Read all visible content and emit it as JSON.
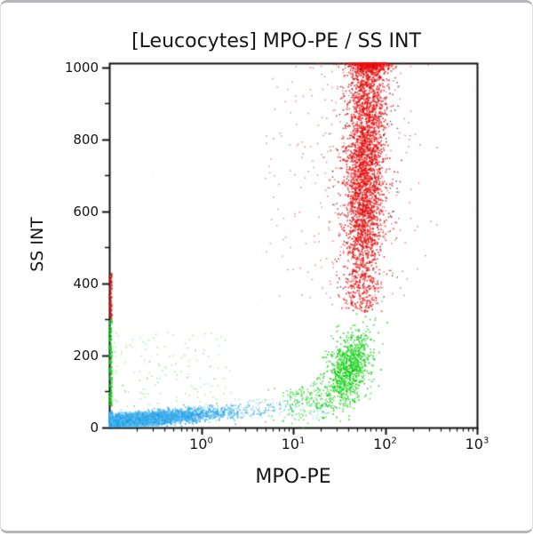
{
  "chart_data": {
    "type": "scatter",
    "title": "[Leucocytes] MPO-PE / SS INT",
    "xlabel": "MPO-PE",
    "ylabel": "SS INT",
    "x_scale": "log10",
    "x_decade_range": [
      -1,
      3
    ],
    "x_tick_exponents": [
      0,
      1,
      2,
      3
    ],
    "y_range": [
      0,
      1012
    ],
    "y_major_ticks": [
      0,
      200,
      400,
      600,
      800,
      1000
    ],
    "y_minor_ticks": [
      100,
      300,
      500,
      700,
      900
    ],
    "grid": false,
    "legend": null,
    "axis_color": "#101010",
    "populations": [
      {
        "name": "background-noise",
        "kind": "uniform",
        "color": "#a8b2ba",
        "alpha": 0.16,
        "size": 1.3,
        "count": 150,
        "x0": -1,
        "x1": 3,
        "y0": 5,
        "y1": 1000
      },
      {
        "name": "lymphocytes-band",
        "kind": "band",
        "colors": [
          "#29a3e8",
          "#1e97e0",
          "#45b4ee",
          "#6cc8f2"
        ],
        "alpha": 0.75,
        "size": 1.7,
        "count": 3600,
        "sx": 0.62,
        "edge_frac": 0.18,
        "dx_max": 2.2,
        "y0": 16,
        "slope": 20,
        "sy": 10
      },
      {
        "name": "lymphocytes-tail",
        "kind": "uniform",
        "color": "#64bfee",
        "alpha": 0.5,
        "size": 1.5,
        "count": 120,
        "x0": 0.3,
        "x1": 1.4,
        "y0": 25,
        "y1": 80
      },
      {
        "name": "monocytes-left-scatter",
        "kind": "uniform",
        "color": "#46d246",
        "alpha": 0.5,
        "size": 1.5,
        "count": 140,
        "x0": -1,
        "x1": 0.35,
        "y0": 55,
        "y1": 265
      },
      {
        "name": "monocytes-edge-pile",
        "kind": "edge",
        "color": "#12c91a",
        "alpha": 0.85,
        "size": 1.7,
        "count": 140,
        "y0": 60,
        "y1": 300
      },
      {
        "name": "monocytes-tail",
        "kind": "gauss",
        "color": "#17cf17",
        "alpha": 0.7,
        "size": 1.6,
        "count": 220,
        "mx": 1.2,
        "sx": 0.22,
        "my": 80,
        "sy": 26,
        "slope": 60
      },
      {
        "name": "monocytes-main",
        "kind": "gauss",
        "colors": [
          "#17cf17",
          "#00c400",
          "#35dd35"
        ],
        "alpha": 0.8,
        "size": 1.7,
        "count": 850,
        "mx": 1.6,
        "sx": 0.125,
        "my": 165,
        "sy": 48,
        "slope": 170,
        "ymin_drop": 15,
        "ymax": 335
      },
      {
        "name": "neutrophils-halo",
        "kind": "gauss",
        "color": "#e52525",
        "alpha": 0.6,
        "size": 1.5,
        "count": 380,
        "mx": 1.74,
        "sx": 0.3,
        "my": 700,
        "sy": 280,
        "ymin_drop": 335,
        "ymax": 1012,
        "pile": true
      },
      {
        "name": "neutrophils-sparse-left",
        "kind": "uniform",
        "color": "#cc2525",
        "alpha": 0.5,
        "size": 1.5,
        "count": 80,
        "x0": 0.7,
        "x1": 1.5,
        "y0": 360,
        "y1": 1005
      },
      {
        "name": "neutrophils-edge-pile",
        "kind": "edge",
        "color": "#d41414",
        "alpha": 0.8,
        "size": 1.7,
        "count": 80,
        "y0": 300,
        "y1": 430
      },
      {
        "name": "neutrophils-main",
        "kind": "gauss",
        "colors": [
          "#f30d0d",
          "#f30d0d",
          "#f30d0d",
          "#e02020",
          "#c01010"
        ],
        "alpha": 0.8,
        "size": 1.7,
        "count": 3400,
        "mx": 1.785,
        "sx": 0.105,
        "my": 745,
        "sy": 245,
        "lean": 0.00012,
        "ymin_drop": 320,
        "ymax": 1012,
        "pile": true
      },
      {
        "name": "neutrophils-dark-specks",
        "kind": "uniform",
        "color": "#4a0d12",
        "alpha": 0.7,
        "size": 1.5,
        "count": 110,
        "x0": 1.4,
        "x1": 2.15,
        "y0": 380,
        "y1": 1005
      }
    ]
  }
}
